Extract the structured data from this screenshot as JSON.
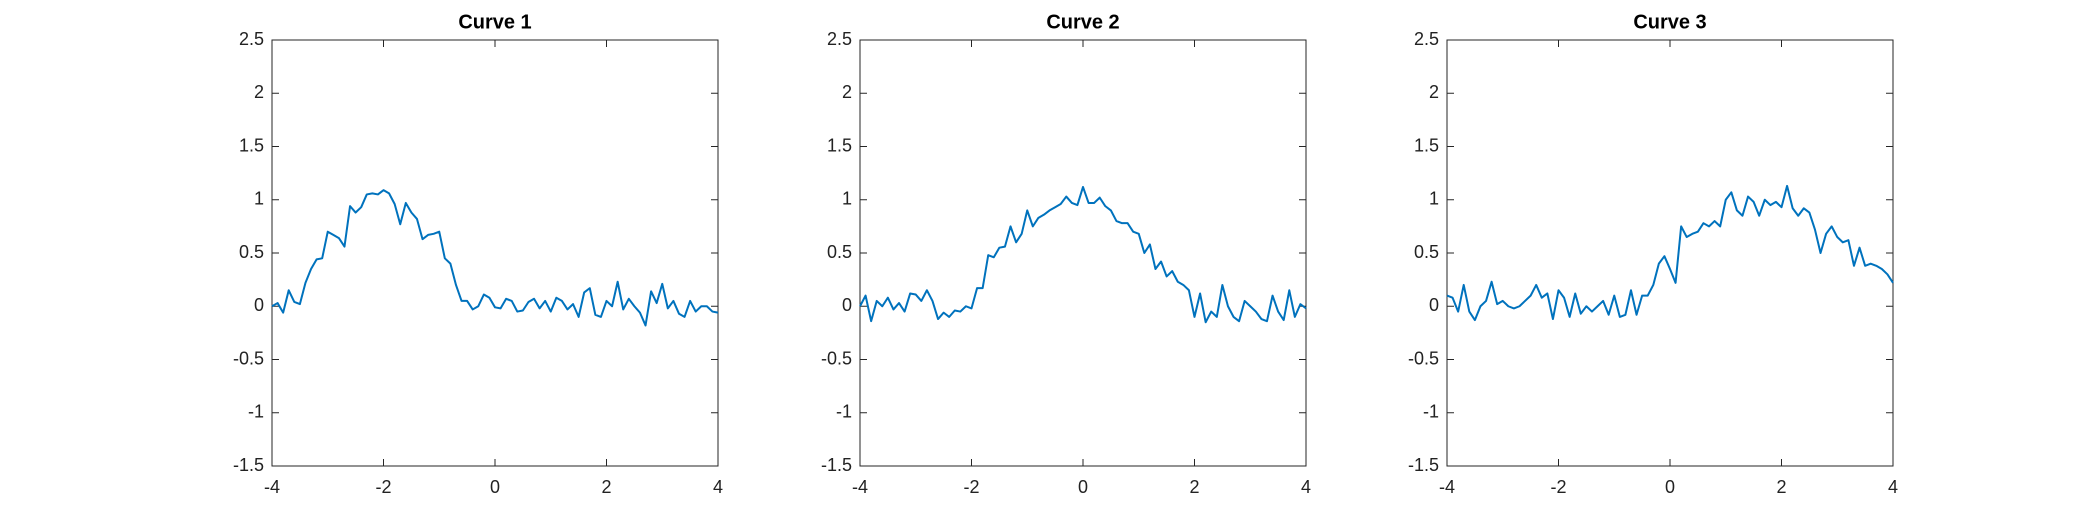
{
  "chart_data": [
    {
      "type": "line",
      "title": "Curve 1",
      "x": [
        -4,
        -3.9,
        -3.8,
        -3.7,
        -3.6,
        -3.5,
        -3.4,
        -3.3,
        -3.2,
        -3.1,
        -3,
        -2.9,
        -2.8,
        -2.7,
        -2.6,
        -2.5,
        -2.4,
        -2.3,
        -2.2,
        -2.1,
        -2,
        -1.9,
        -1.8,
        -1.7,
        -1.6,
        -1.5,
        -1.4,
        -1.3,
        -1.2,
        -1.1,
        -1,
        -0.9,
        -0.8,
        -0.7,
        -0.6,
        -0.5,
        -0.4,
        -0.3,
        -0.2,
        -0.1,
        0,
        0.1,
        0.2,
        0.3,
        0.4,
        0.5,
        0.6,
        0.7,
        0.8,
        0.9,
        1,
        1.1,
        1.2,
        1.3,
        1.4,
        1.5,
        1.6,
        1.7,
        1.8,
        1.9,
        2,
        2.1,
        2.2,
        2.3,
        2.4,
        2.5,
        2.6,
        2.7,
        2.8,
        2.9,
        3,
        3.1,
        3.2,
        3.3,
        3.4,
        3.5,
        3.6,
        3.7,
        3.8,
        3.9,
        4
      ],
      "values": [
        0,
        0.03,
        -0.06,
        0.15,
        0.04,
        0.02,
        0.22,
        0.35,
        0.44,
        0.45,
        0.7,
        0.67,
        0.64,
        0.56,
        0.94,
        0.88,
        0.93,
        1.05,
        1.06,
        1.05,
        1.09,
        1.06,
        0.96,
        0.77,
        0.97,
        0.88,
        0.82,
        0.63,
        0.67,
        0.68,
        0.7,
        0.45,
        0.4,
        0.2,
        0.05,
        0.05,
        -0.03,
        0,
        0.11,
        0.08,
        -0.01,
        -0.02,
        0.07,
        0.05,
        -0.05,
        -0.04,
        0.04,
        0.07,
        -0.02,
        0.05,
        -0.05,
        0.08,
        0.05,
        -0.03,
        0.02,
        -0.1,
        0.13,
        0.17,
        -0.08,
        -0.1,
        0.05,
        0,
        0.23,
        -0.03,
        0.07,
        0,
        -0.06,
        -0.18,
        0.14,
        0.03,
        0.21,
        -0.02,
        0.05,
        -0.07,
        -0.1,
        0.05,
        -0.05,
        0,
        0,
        -0.05,
        -0.06
      ],
      "color": "#0072bd",
      "xlim": [
        -4,
        4
      ],
      "ylim": [
        -1.5,
        2.5
      ],
      "xticks": [
        -4,
        -2,
        0,
        2,
        4
      ],
      "yticks": [
        -1.5,
        -1,
        -0.5,
        0,
        0.5,
        1,
        1.5,
        2,
        2.5
      ]
    },
    {
      "type": "line",
      "title": "Curve 2",
      "x": [
        -4,
        -3.9,
        -3.8,
        -3.7,
        -3.6,
        -3.5,
        -3.4,
        -3.3,
        -3.2,
        -3.1,
        -3,
        -2.9,
        -2.8,
        -2.7,
        -2.6,
        -2.5,
        -2.4,
        -2.3,
        -2.2,
        -2.1,
        -2,
        -1.9,
        -1.8,
        -1.7,
        -1.6,
        -1.5,
        -1.4,
        -1.3,
        -1.2,
        -1.1,
        -1,
        -0.9,
        -0.8,
        -0.7,
        -0.6,
        -0.5,
        -0.4,
        -0.3,
        -0.2,
        -0.1,
        0,
        0.1,
        0.2,
        0.3,
        0.4,
        0.5,
        0.6,
        0.7,
        0.8,
        0.9,
        1,
        1.1,
        1.2,
        1.3,
        1.4,
        1.5,
        1.6,
        1.7,
        1.8,
        1.9,
        2,
        2.1,
        2.2,
        2.3,
        2.4,
        2.5,
        2.6,
        2.7,
        2.8,
        2.9,
        3,
        3.1,
        3.2,
        3.3,
        3.4,
        3.5,
        3.6,
        3.7,
        3.8,
        3.9,
        4
      ],
      "values": [
        0,
        0.1,
        -0.14,
        0.05,
        0,
        0.08,
        -0.03,
        0.03,
        -0.05,
        0.12,
        0.11,
        0.05,
        0.15,
        0.05,
        -0.12,
        -0.06,
        -0.1,
        -0.04,
        -0.05,
        0,
        -0.02,
        0.17,
        0.17,
        0.48,
        0.46,
        0.55,
        0.56,
        0.75,
        0.6,
        0.68,
        0.9,
        0.75,
        0.83,
        0.86,
        0.9,
        0.93,
        0.96,
        1.03,
        0.97,
        0.95,
        1.12,
        0.97,
        0.97,
        1.02,
        0.94,
        0.9,
        0.8,
        0.78,
        0.78,
        0.7,
        0.68,
        0.5,
        0.58,
        0.35,
        0.42,
        0.28,
        0.33,
        0.23,
        0.2,
        0.15,
        -0.1,
        0.12,
        -0.15,
        -0.05,
        -0.1,
        0.2,
        0,
        -0.1,
        -0.14,
        0.05,
        0,
        -0.05,
        -0.12,
        -0.14,
        0.1,
        -0.05,
        -0.13,
        0.15,
        -0.1,
        0.02,
        -0.02
      ],
      "color": "#0072bd",
      "xlim": [
        -4,
        4
      ],
      "ylim": [
        -1.5,
        2.5
      ],
      "xticks": [
        -4,
        -2,
        0,
        2,
        4
      ],
      "yticks": [
        -1.5,
        -1,
        -0.5,
        0,
        0.5,
        1,
        1.5,
        2,
        2.5
      ]
    },
    {
      "type": "line",
      "title": "Curve 3",
      "x": [
        -4,
        -3.9,
        -3.8,
        -3.7,
        -3.6,
        -3.5,
        -3.4,
        -3.3,
        -3.2,
        -3.1,
        -3,
        -2.9,
        -2.8,
        -2.7,
        -2.6,
        -2.5,
        -2.4,
        -2.3,
        -2.2,
        -2.1,
        -2,
        -1.9,
        -1.8,
        -1.7,
        -1.6,
        -1.5,
        -1.4,
        -1.3,
        -1.2,
        -1.1,
        -1,
        -0.9,
        -0.8,
        -0.7,
        -0.6,
        -0.5,
        -0.4,
        -0.3,
        -0.2,
        -0.1,
        0,
        0.1,
        0.2,
        0.3,
        0.4,
        0.5,
        0.6,
        0.7,
        0.8,
        0.9,
        1,
        1.1,
        1.2,
        1.3,
        1.4,
        1.5,
        1.6,
        1.7,
        1.8,
        1.9,
        2,
        2.1,
        2.2,
        2.3,
        2.4,
        2.5,
        2.6,
        2.7,
        2.8,
        2.9,
        3,
        3.1,
        3.2,
        3.3,
        3.4,
        3.5,
        3.6,
        3.7,
        3.8,
        3.9,
        4
      ],
      "values": [
        0.1,
        0.08,
        -0.05,
        0.2,
        -0.05,
        -0.13,
        0,
        0.05,
        0.23,
        0.02,
        0.05,
        0,
        -0.02,
        0,
        0.05,
        0.1,
        0.2,
        0.08,
        0.12,
        -0.12,
        0.15,
        0.08,
        -0.1,
        0.12,
        -0.07,
        0,
        -0.05,
        0,
        0.05,
        -0.08,
        0.1,
        -0.1,
        -0.08,
        0.15,
        -0.08,
        0.1,
        0.1,
        0.2,
        0.4,
        0.47,
        0.35,
        0.22,
        0.75,
        0.65,
        0.68,
        0.7,
        0.78,
        0.75,
        0.8,
        0.75,
        1,
        1.07,
        0.9,
        0.85,
        1.03,
        0.98,
        0.85,
        1,
        0.95,
        0.98,
        0.93,
        1.13,
        0.92,
        0.85,
        0.92,
        0.88,
        0.72,
        0.5,
        0.68,
        0.75,
        0.65,
        0.6,
        0.62,
        0.38,
        0.55,
        0.38,
        0.4,
        0.38,
        0.35,
        0.3,
        0.22
      ],
      "color": "#0072bd",
      "xlim": [
        -4,
        4
      ],
      "ylim": [
        -1.5,
        2.5
      ],
      "xticks": [
        -4,
        -2,
        0,
        2,
        4
      ],
      "yticks": [
        -1.5,
        -1,
        -0.5,
        0,
        0.5,
        1,
        1.5,
        2,
        2.5
      ]
    }
  ]
}
